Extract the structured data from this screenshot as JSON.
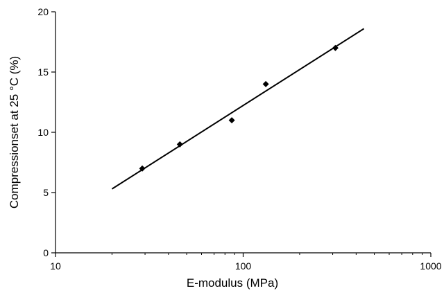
{
  "chart_data": {
    "type": "scatter",
    "title": "",
    "xlabel": "E-modulus  (MPa)",
    "ylabel": "Compressionset at 25 °C (%)",
    "xscale": "log",
    "xlim": [
      10,
      1000
    ],
    "ylim": [
      0,
      20
    ],
    "xticks": [
      10,
      100,
      1000
    ],
    "xtick_labels": [
      "10",
      "100",
      "1000"
    ],
    "yticks": [
      0,
      5,
      10,
      15,
      20
    ],
    "ytick_labels": [
      "0",
      "5",
      "10",
      "15",
      "20"
    ],
    "grid": false,
    "legend": "none",
    "series": [
      {
        "marker": "diamond",
        "color": "#000000",
        "x": [
          29,
          46,
          87,
          132,
          310
        ],
        "y": [
          7,
          9,
          11,
          14,
          17
        ]
      }
    ],
    "trendline": {
      "color": "#000000",
      "x": [
        20,
        440
      ],
      "y": [
        5.3,
        18.6
      ]
    }
  }
}
